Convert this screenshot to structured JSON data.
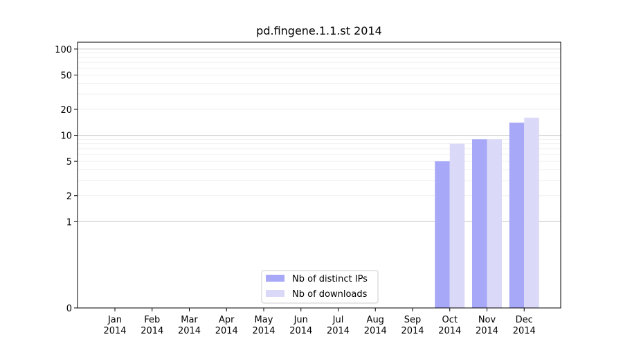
{
  "chart_data": {
    "type": "bar",
    "title": "pd.fingene.1.1.st 2014",
    "xlabel": "",
    "ylabel": "",
    "y_scale": "symlog",
    "ylim": [
      0,
      120
    ],
    "grid": true,
    "legend_position": "lower-center",
    "categories": [
      "Jan 2014",
      "Feb 2014",
      "Mar 2014",
      "Apr 2014",
      "May 2014",
      "Jun 2014",
      "Jul 2014",
      "Aug 2014",
      "Sep 2014",
      "Oct 2014",
      "Nov 2014",
      "Dec 2014"
    ],
    "category_labels": [
      [
        "Jan",
        "2014"
      ],
      [
        "Feb",
        "2014"
      ],
      [
        "Mar",
        "2014"
      ],
      [
        "Apr",
        "2014"
      ],
      [
        "May",
        "2014"
      ],
      [
        "Jun",
        "2014"
      ],
      [
        "Jul",
        "2014"
      ],
      [
        "Aug",
        "2014"
      ],
      [
        "Sep",
        "2014"
      ],
      [
        "Oct",
        "2014"
      ],
      [
        "Nov",
        "2014"
      ],
      [
        "Dec",
        "2014"
      ]
    ],
    "y_ticks": [
      0,
      1,
      2,
      5,
      10,
      20,
      50,
      100
    ],
    "series": [
      {
        "name": "Nb of distinct IPs",
        "color": "#a8a8f8",
        "values": [
          0,
          0,
          0,
          0,
          0,
          0,
          0,
          0,
          0,
          5,
          9,
          14
        ]
      },
      {
        "name": "Nb of downloads",
        "color": "#dadaf8",
        "values": [
          0,
          0,
          0,
          0,
          0,
          0,
          0,
          0,
          0,
          8,
          9,
          16
        ]
      }
    ]
  }
}
